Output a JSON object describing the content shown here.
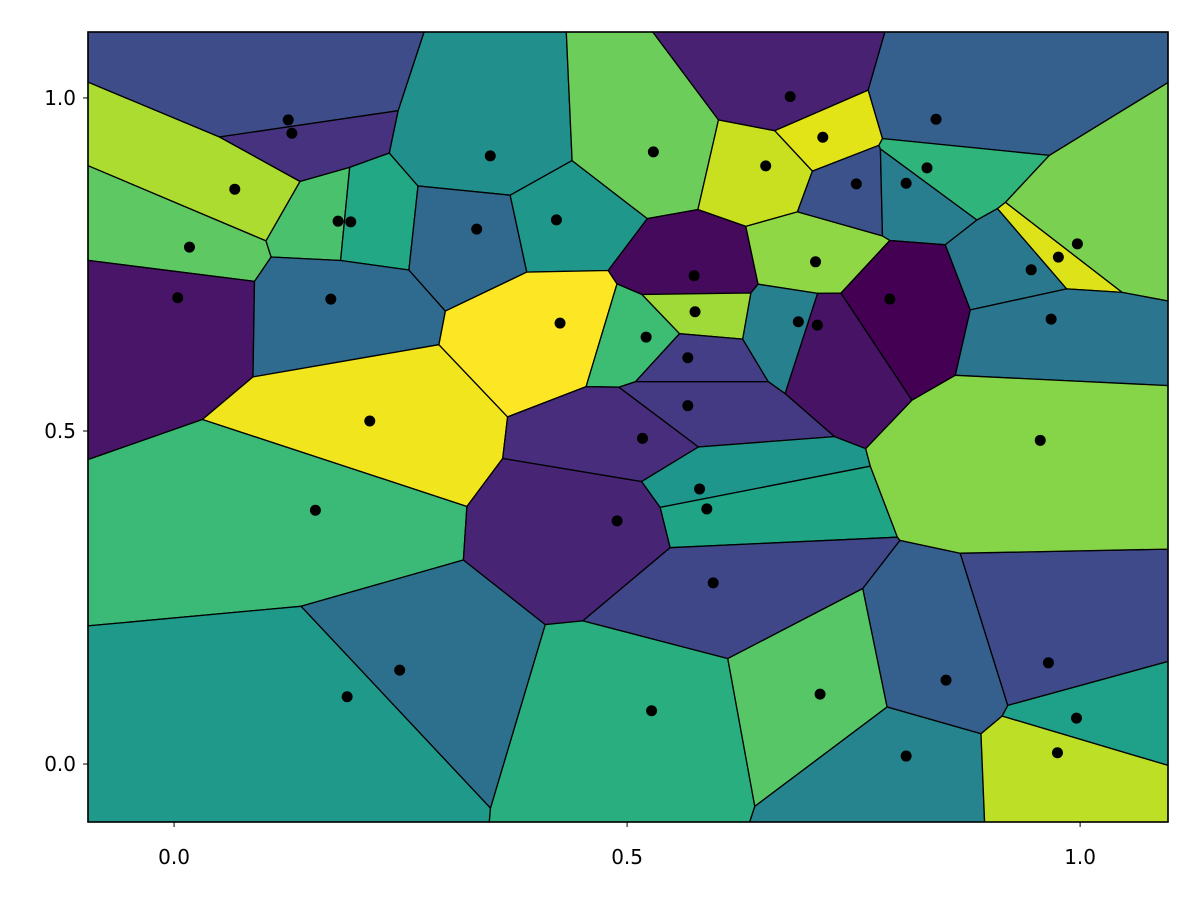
{
  "chart_data": {
    "type": "voronoi",
    "title": "",
    "xlabel": "",
    "ylabel": "",
    "xlim": [
      -0.095,
      1.097
    ],
    "ylim": [
      -0.087,
      1.099
    ],
    "grid": false,
    "x_ticks": [
      {
        "value": 0.0,
        "label": "0.0"
      },
      {
        "value": 0.5,
        "label": "0.5"
      },
      {
        "value": 1.0,
        "label": "1.0"
      }
    ],
    "y_ticks": [
      {
        "value": 0.0,
        "label": "0.0"
      },
      {
        "value": 0.5,
        "label": "0.5"
      },
      {
        "value": 1.0,
        "label": "1.0"
      }
    ],
    "cell_edge_color": "#000000",
    "point_color": "#000000",
    "colormap": "viridis",
    "sites": [
      {
        "x": 0.126,
        "y": 0.967,
        "color": "#3e4c8a"
      },
      {
        "x": 0.13,
        "y": 0.947,
        "color": "#46327e"
      },
      {
        "x": 0.067,
        "y": 0.863,
        "color": "#addc30"
      },
      {
        "x": 0.017,
        "y": 0.776,
        "color": "#5ec962"
      },
      {
        "x": 0.004,
        "y": 0.7,
        "color": "#481568"
      },
      {
        "x": 0.181,
        "y": 0.815,
        "color": "#4ac16d"
      },
      {
        "x": 0.195,
        "y": 0.814,
        "color": "#22a884"
      },
      {
        "x": 0.173,
        "y": 0.698,
        "color": "#2f6b8e"
      },
      {
        "x": 0.216,
        "y": 0.515,
        "color": "#f1e51d"
      },
      {
        "x": 0.156,
        "y": 0.381,
        "color": "#3aba76"
      },
      {
        "x": 0.249,
        "y": 0.141,
        "color": "#2d708e"
      },
      {
        "x": 0.191,
        "y": 0.101,
        "color": "#1f9a8a"
      },
      {
        "x": 0.349,
        "y": 0.913,
        "color": "#21908d"
      },
      {
        "x": 0.334,
        "y": 0.803,
        "color": "#31688e"
      },
      {
        "x": 0.422,
        "y": 0.817,
        "color": "#1f988b"
      },
      {
        "x": 0.426,
        "y": 0.662,
        "color": "#fde725"
      },
      {
        "x": 0.529,
        "y": 0.919,
        "color": "#6ccd5a"
      },
      {
        "x": 0.653,
        "y": 0.898,
        "color": "#c8e020"
      },
      {
        "x": 0.68,
        "y": 1.002,
        "color": "#482173"
      },
      {
        "x": 0.716,
        "y": 0.941,
        "color": "#e2e418"
      },
      {
        "x": 0.753,
        "y": 0.871,
        "color": "#3b528b"
      },
      {
        "x": 0.808,
        "y": 0.872,
        "color": "#287d8e"
      },
      {
        "x": 0.841,
        "y": 0.968,
        "color": "#355f8d"
      },
      {
        "x": 0.831,
        "y": 0.895,
        "color": "#2fb47c"
      },
      {
        "x": 0.574,
        "y": 0.733,
        "color": "#450a5c"
      },
      {
        "x": 0.575,
        "y": 0.679,
        "color": "#a0da39"
      },
      {
        "x": 0.521,
        "y": 0.641,
        "color": "#3dbc74"
      },
      {
        "x": 0.567,
        "y": 0.61,
        "color": "#433e85"
      },
      {
        "x": 0.708,
        "y": 0.754,
        "color": "#8fd744"
      },
      {
        "x": 0.689,
        "y": 0.664,
        "color": "#26808e"
      },
      {
        "x": 0.71,
        "y": 0.659,
        "color": "#471365"
      },
      {
        "x": 0.79,
        "y": 0.698,
        "color": "#440154"
      },
      {
        "x": 0.946,
        "y": 0.742,
        "color": "#2a788e"
      },
      {
        "x": 0.976,
        "y": 0.761,
        "color": "#dde318"
      },
      {
        "x": 0.997,
        "y": 0.781,
        "color": "#7ad151"
      },
      {
        "x": 0.968,
        "y": 0.668,
        "color": "#2b758e"
      },
      {
        "x": 0.567,
        "y": 0.538,
        "color": "#443983"
      },
      {
        "x": 0.517,
        "y": 0.489,
        "color": "#472d7b"
      },
      {
        "x": 0.58,
        "y": 0.413,
        "color": "#1f968b"
      },
      {
        "x": 0.588,
        "y": 0.383,
        "color": "#20a486"
      },
      {
        "x": 0.489,
        "y": 0.365,
        "color": "#482475"
      },
      {
        "x": 0.595,
        "y": 0.272,
        "color": "#3f4788"
      },
      {
        "x": 0.527,
        "y": 0.08,
        "color": "#29af7f"
      },
      {
        "x": 0.713,
        "y": 0.105,
        "color": "#56c667"
      },
      {
        "x": 0.852,
        "y": 0.126,
        "color": "#355f8d"
      },
      {
        "x": 0.808,
        "y": 0.012,
        "color": "#25848e"
      },
      {
        "x": 0.965,
        "y": 0.152,
        "color": "#3e4a89"
      },
      {
        "x": 0.996,
        "y": 0.069,
        "color": "#1fa088"
      },
      {
        "x": 0.975,
        "y": 0.017,
        "color": "#bddf26"
      },
      {
        "x": 0.956,
        "y": 0.486,
        "color": "#86d549"
      }
    ]
  }
}
